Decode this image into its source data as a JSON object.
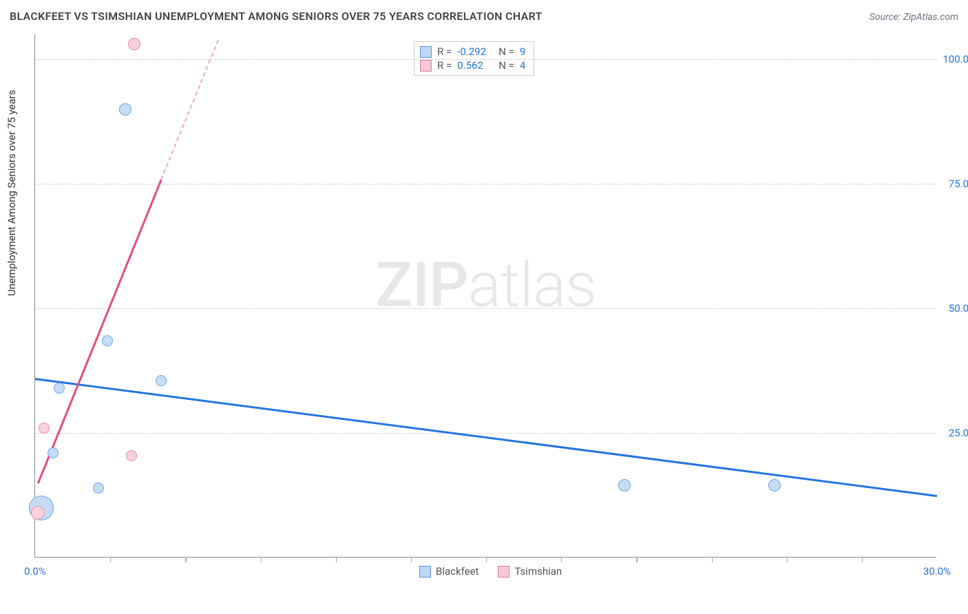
{
  "header": {
    "title": "BLACKFEET VS TSIMSHIAN UNEMPLOYMENT AMONG SENIORS OVER 75 YEARS CORRELATION CHART",
    "source": "Source: ZipAtlas.com"
  },
  "chart": {
    "type": "scatter",
    "ylabel": "Unemployment Among Seniors over 75 years",
    "xlim": [
      0,
      30
    ],
    "ylim": [
      0,
      105
    ],
    "yticks": [
      {
        "v": 25,
        "label": "25.0%"
      },
      {
        "v": 50,
        "label": "50.0%"
      },
      {
        "v": 75,
        "label": "75.0%"
      },
      {
        "v": 100,
        "label": "100.0%"
      }
    ],
    "xticks_minor": [
      2.5,
      5.0,
      7.5,
      10.0,
      12.5,
      15.0,
      17.5,
      20.0,
      22.5,
      25.0,
      27.5
    ],
    "xtick_labels": [
      {
        "v": 0,
        "label": "0.0%"
      },
      {
        "v": 30,
        "label": "30.0%"
      }
    ],
    "grid_color": "#d0d0d0",
    "background_color": "#ffffff",
    "series": {
      "blackfeet": {
        "label": "Blackfeet",
        "fill": "#c6dcf5",
        "stroke": "#6ca5e8",
        "swatch_fill": "#bed7f4",
        "swatch_stroke": "#5a96e0",
        "points": [
          {
            "x": 0.2,
            "y": 10.0,
            "r": 18
          },
          {
            "x": 0.6,
            "y": 21.0,
            "r": 8
          },
          {
            "x": 0.8,
            "y": 34.0,
            "r": 8
          },
          {
            "x": 2.1,
            "y": 14.0,
            "r": 8
          },
          {
            "x": 2.4,
            "y": 43.5,
            "r": 8
          },
          {
            "x": 3.0,
            "y": 90.0,
            "r": 9
          },
          {
            "x": 4.2,
            "y": 35.5,
            "r": 8
          },
          {
            "x": 19.6,
            "y": 14.5,
            "r": 9
          },
          {
            "x": 24.6,
            "y": 14.5,
            "r": 9
          }
        ],
        "trend": {
          "x1": 0,
          "y1": 36.0,
          "x2": 30,
          "y2": 12.5,
          "color": "#2474e0",
          "width": 2.5
        }
      },
      "tsimshian": {
        "label": "Tsimshian",
        "fill": "#f7d1dc",
        "stroke": "#e68ca8",
        "swatch_fill": "#f6c9d7",
        "swatch_stroke": "#e07ba0",
        "points": [
          {
            "x": 0.1,
            "y": 9.0,
            "r": 10
          },
          {
            "x": 0.3,
            "y": 26.0,
            "r": 8
          },
          {
            "x": 3.2,
            "y": 20.5,
            "r": 8
          },
          {
            "x": 3.3,
            "y": 103.0,
            "r": 9
          }
        ],
        "trend_solid": {
          "x1": 0.1,
          "y1": 15.0,
          "x2": 4.2,
          "y2": 76.0,
          "color": "#e94b7a",
          "width": 2.5
        },
        "trend_dashed": {
          "x1": 4.2,
          "y1": 76.0,
          "x2": 6.1,
          "y2": 104.0,
          "color": "#f0a7bd",
          "width": 2
        }
      }
    },
    "stats_legend": [
      {
        "series": "blackfeet",
        "R": "-0.292",
        "N": "9"
      },
      {
        "series": "tsimshian",
        "R": "0.562",
        "N": "4"
      }
    ],
    "watermark": {
      "bold": "ZIP",
      "light": "atlas"
    }
  }
}
